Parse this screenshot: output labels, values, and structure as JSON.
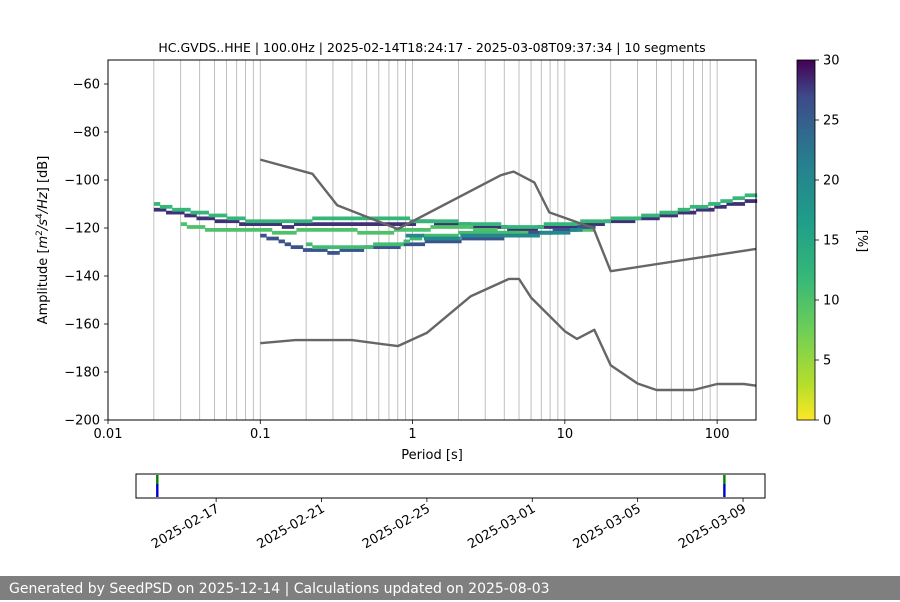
{
  "chart_data": [
    {
      "type": "heatmap",
      "title": "HC.GVDS..HHE | 100.0Hz | 2025-02-14T18:24:17 - 2025-03-08T09:37:34 | 10 segments",
      "xlabel": "Period [s]",
      "ylabel_prefix": "Amplitude [",
      "ylabel_suffix": "] [dB]",
      "ylabel_math": [
        "m",
        "2",
        "/s",
        "4",
        "/Hz"
      ],
      "x_scale": "log",
      "xlim": [
        0.01,
        180
      ],
      "ylim": [
        -200,
        -50
      ],
      "x_ticks": [
        0.01,
        0.1,
        1,
        10,
        100
      ],
      "x_tick_labels": [
        "0.01",
        "0.1",
        "1",
        "10",
        "100"
      ],
      "y_ticks": [
        -200,
        -180,
        -160,
        -140,
        -120,
        -100,
        -80,
        -60
      ],
      "y_tick_labels": [
        "−200",
        "−180",
        "−160",
        "−140",
        "−120",
        "−100",
        "−80",
        "−60"
      ],
      "grid": "vertical period lines",
      "colorbar": {
        "label": "[%]",
        "min": 0,
        "max": 30,
        "ticks": [
          0,
          5,
          10,
          15,
          20,
          25,
          30
        ],
        "tick_labels": [
          "0",
          "5",
          "10",
          "15",
          "20",
          "25",
          "30"
        ],
        "colormap": "viridis_r",
        "colors": [
          "#fde725",
          "#5ec962",
          "#21918c",
          "#3b528b",
          "#440154"
        ]
      },
      "noise_model_curves": [
        {
          "name": "",
          "color": "#666666",
          "points": [
            [
              0.1,
              -91.5
            ],
            [
              0.22,
              -97.4
            ],
            [
              0.32,
              -110.5
            ],
            [
              0.8,
              -120.4
            ],
            [
              3.8,
              -98
            ],
            [
              4.6,
              -96.5
            ],
            [
              6.3,
              -101
            ],
            [
              7.9,
              -113.5
            ],
            [
              15.4,
              -120
            ],
            [
              20,
              -138
            ],
            [
              180,
              -128.7
            ]
          ]
        },
        {
          "name": "",
          "color": "#666666",
          "points": [
            [
              0.1,
              -168
            ],
            [
              0.17,
              -166.7
            ],
            [
              0.4,
              -166.7
            ],
            [
              0.8,
              -169.2
            ],
            [
              1.24,
              -163.7
            ],
            [
              2.4,
              -148.5
            ],
            [
              4.3,
              -141.2
            ],
            [
              5.0,
              -141.2
            ],
            [
              6.0,
              -149
            ],
            [
              10,
              -163
            ],
            [
              12,
              -166.2
            ],
            [
              15.6,
              -162.4
            ],
            [
              20,
              -177.2
            ],
            [
              30,
              -184.8
            ],
            [
              40,
              -187.5
            ],
            [
              70,
              -187.5
            ],
            [
              100,
              -185
            ],
            [
              150,
              -185
            ],
            [
              180,
              -185.7
            ]
          ]
        }
      ],
      "psd_bands": [
        {
          "name": "",
          "value_percent": 28,
          "points": [
            [
              0.02,
              -112
            ],
            [
              0.03,
              -114.5
            ],
            [
              0.05,
              -117
            ],
            [
              0.08,
              -118.5
            ],
            [
              0.15,
              -119.5
            ],
            [
              0.3,
              -118.5
            ],
            [
              0.6,
              -119
            ],
            [
              1.2,
              -118
            ],
            [
              2.5,
              -119.5
            ],
            [
              5,
              -121
            ],
            [
              10,
              -120
            ],
            [
              20,
              -118
            ],
            [
              40,
              -116
            ],
            [
              70,
              -113.5
            ],
            [
              120,
              -111
            ],
            [
              180,
              -109
            ]
          ]
        },
        {
          "name": "",
          "value_percent": 12,
          "points": [
            [
              0.02,
              -110
            ],
            [
              0.03,
              -113
            ],
            [
              0.05,
              -115
            ],
            [
              0.08,
              -117
            ],
            [
              0.15,
              -118
            ],
            [
              0.3,
              -116
            ],
            [
              0.6,
              -116
            ],
            [
              1.2,
              -117.5
            ],
            [
              2.5,
              -118.5
            ],
            [
              5,
              -120
            ],
            [
              10,
              -119
            ],
            [
              20,
              -117
            ],
            [
              40,
              -115
            ],
            [
              70,
              -112
            ],
            [
              120,
              -109
            ],
            [
              180,
              -106
            ]
          ]
        },
        {
          "name": "",
          "value_percent": 10,
          "points": [
            [
              0.03,
              -119
            ],
            [
              0.05,
              -121
            ],
            [
              0.08,
              -121.5
            ],
            [
              0.15,
              -122
            ],
            [
              0.3,
              -121
            ],
            [
              0.6,
              -122.5
            ],
            [
              1.0,
              -121
            ],
            [
              2.0,
              -120
            ],
            [
              4.0,
              -122
            ],
            [
              8,
              -122
            ],
            [
              15,
              -121
            ]
          ]
        },
        {
          "name": "",
          "value_percent": 26,
          "points": [
            [
              0.1,
              -123
            ],
            [
              0.15,
              -127
            ],
            [
              0.2,
              -129.5
            ],
            [
              0.3,
              -130.5
            ],
            [
              0.5,
              -129
            ],
            [
              0.8,
              -128
            ],
            [
              1.2,
              -126.5
            ],
            [
              2,
              -125.5
            ],
            [
              3.5,
              -124.5
            ],
            [
              5,
              -123.5
            ],
            [
              8,
              -122
            ],
            [
              15,
              -120
            ]
          ]
        },
        {
          "name": "",
          "value_percent": 11,
          "points": [
            [
              0.2,
              -127.5
            ],
            [
              0.3,
              -128.5
            ],
            [
              0.5,
              -128
            ],
            [
              0.8,
              -127
            ],
            [
              1.2,
              -123.5
            ],
            [
              2,
              -123
            ],
            [
              3.5,
              -122.5
            ],
            [
              5,
              -122
            ]
          ]
        },
        {
          "name": "",
          "value_percent": 20,
          "points": [
            [
              0.9,
              -123.8
            ],
            [
              1.5,
              -124.5
            ],
            [
              2.5,
              -124
            ],
            [
              4,
              -123.5
            ],
            [
              7,
              -123
            ],
            [
              12,
              -121.5
            ]
          ]
        }
      ]
    },
    {
      "type": "timeline",
      "x_type": "date",
      "xlim": [
        "2025-02-13T23:00",
        "2025-03-09T20:00"
      ],
      "x_ticks": [
        "2025-02-17",
        "2025-02-21",
        "2025-02-25",
        "2025-03-01",
        "2025-03-05",
        "2025-03-09"
      ],
      "x_tick_labels": [
        "2025-02-17",
        "2025-02-21",
        "2025-02-25",
        "2025-03-01",
        "2025-03-05",
        "2025-03-09"
      ],
      "markers": [
        {
          "date": "2025-02-14T18:24",
          "upper_color": "#008000",
          "lower_color": "#0000cc"
        },
        {
          "date": "2025-03-08T07:00",
          "upper_color": "#008000",
          "lower_color": "#0000cc"
        }
      ]
    }
  ],
  "footer": {
    "text": "Generated by SeedPSD on 2025-12-14 | Calculations updated on 2025-08-03"
  }
}
